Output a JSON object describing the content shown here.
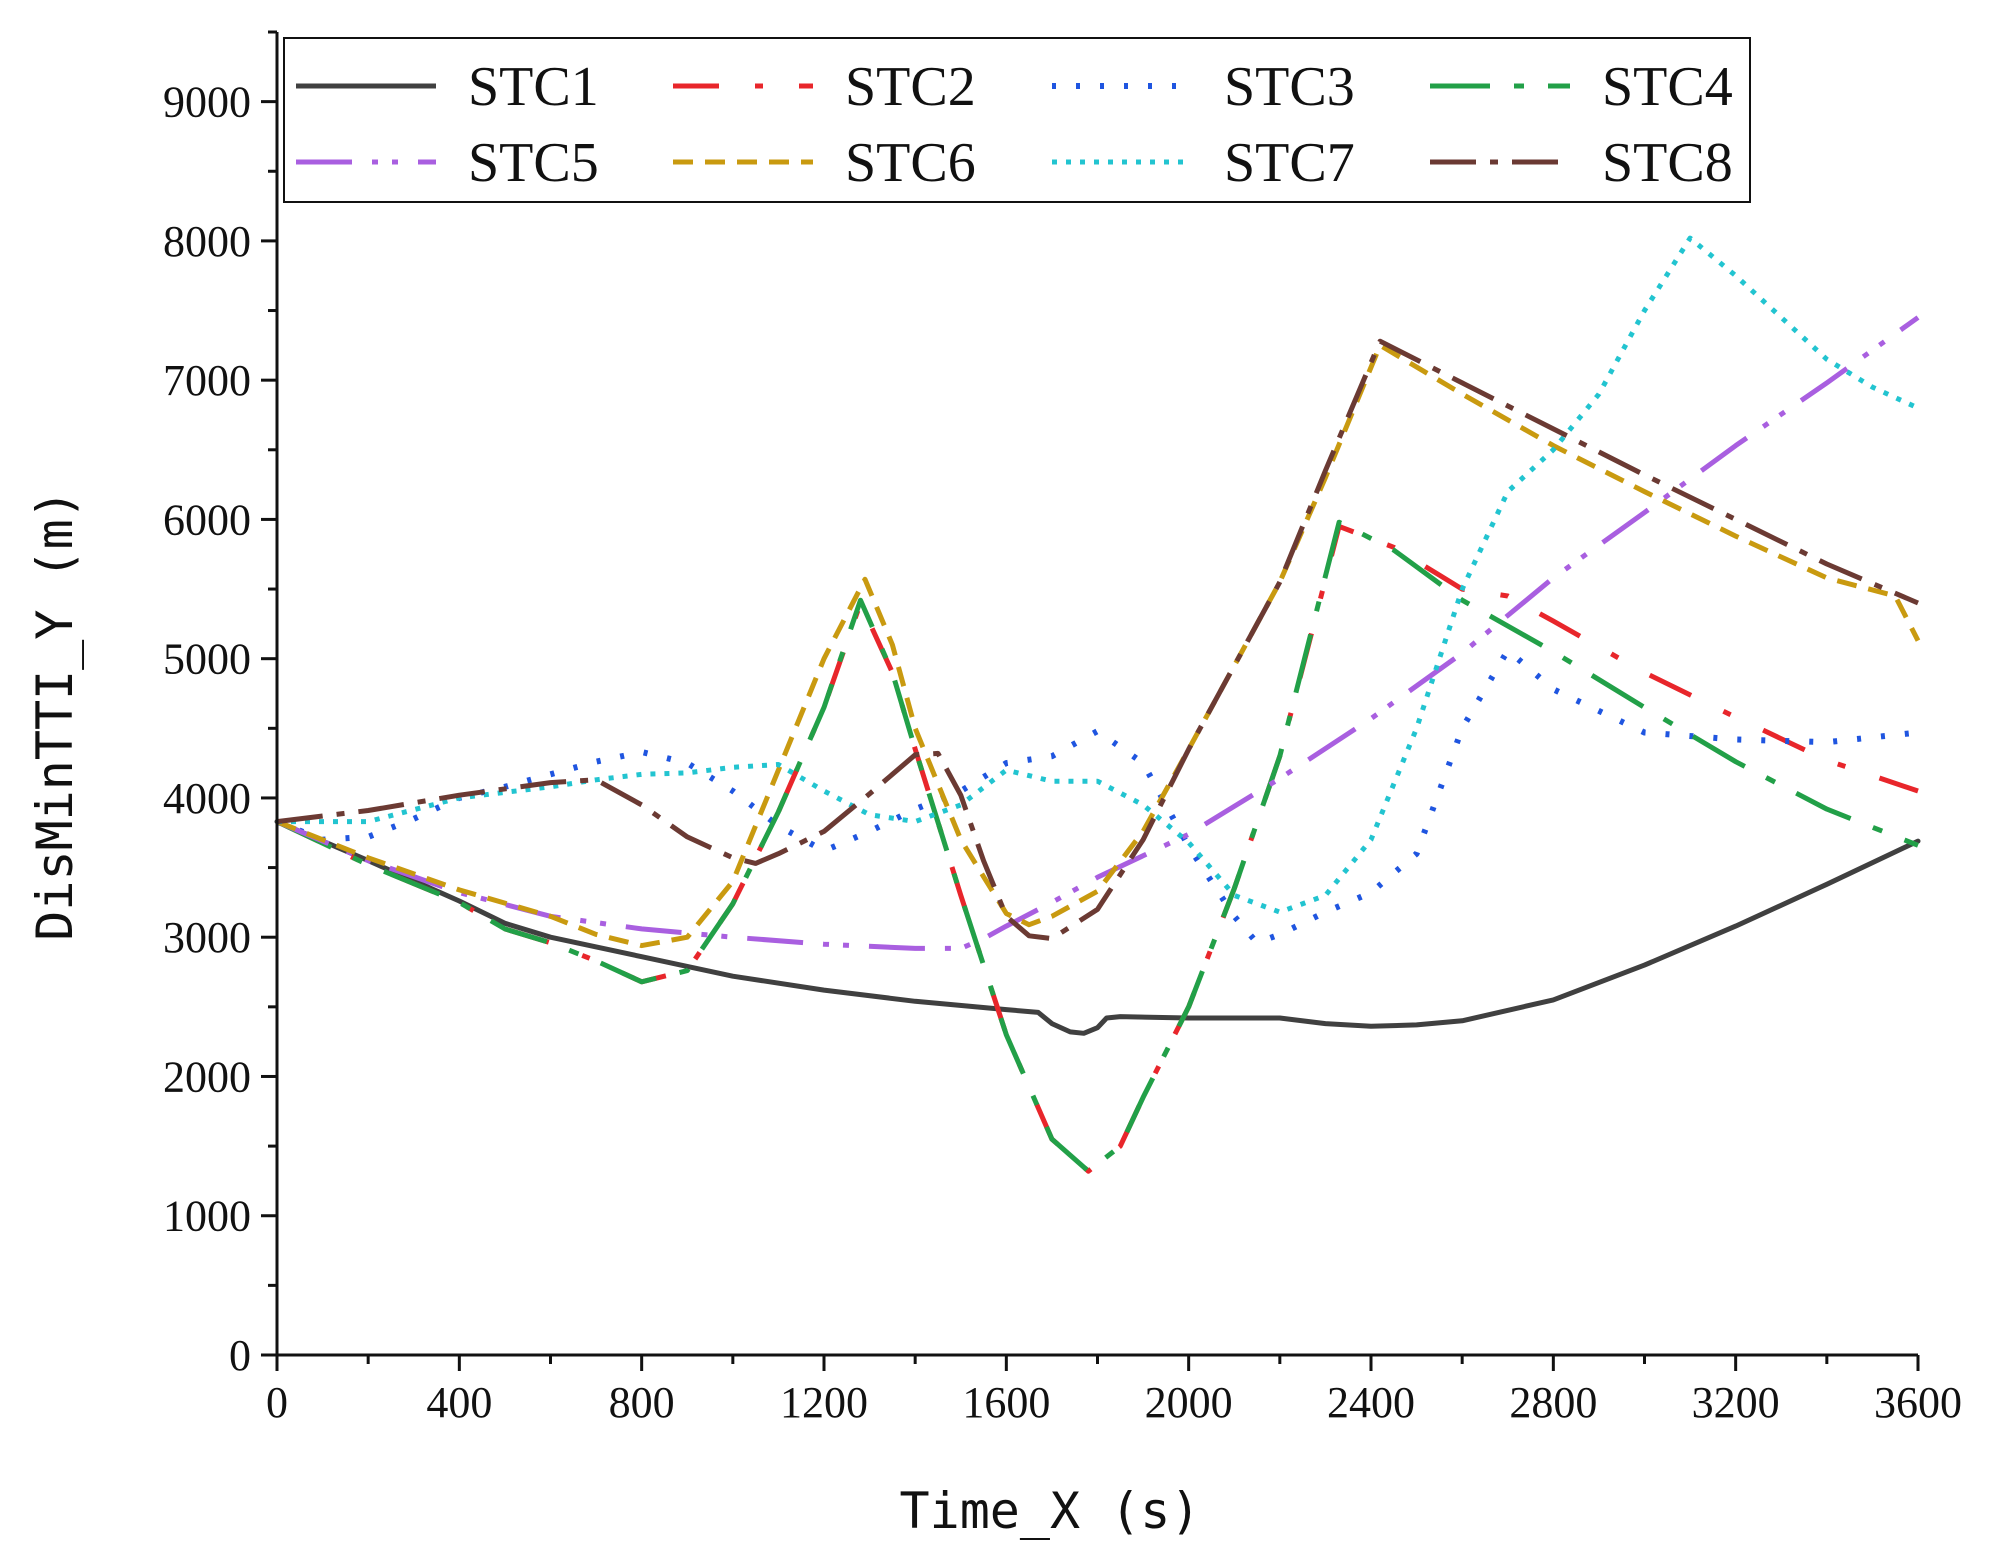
{
  "chart_data": {
    "type": "line",
    "title": "",
    "xlabel": "Time_X (s)",
    "ylabel": "DisMinTTI_Y (m)",
    "xlim": [
      0,
      3600
    ],
    "ylim": [
      0,
      9500
    ],
    "xticks": [
      0,
      400,
      800,
      1200,
      1600,
      2000,
      2400,
      2800,
      3200,
      3600
    ],
    "yticks": [
      0,
      1000,
      2000,
      3000,
      4000,
      5000,
      6000,
      7000,
      8000,
      9000
    ],
    "grid": false,
    "legend_position": "top",
    "series": [
      {
        "name": "STC1",
        "color": "#404040",
        "dash": "",
        "width": 5,
        "x": [
          0,
          200,
          400,
          500,
          600,
          800,
          1000,
          1200,
          1400,
          1600,
          1670,
          1700,
          1740,
          1770,
          1800,
          1820,
          1850,
          2000,
          2200,
          2300,
          2400,
          2500,
          2600,
          2800,
          3000,
          3200,
          3400,
          3600
        ],
        "y": [
          3830,
          3550,
          3260,
          3100,
          3000,
          2860,
          2720,
          2620,
          2540,
          2480,
          2460,
          2380,
          2320,
          2310,
          2350,
          2420,
          2430,
          2420,
          2420,
          2380,
          2360,
          2370,
          2400,
          2550,
          2800,
          3080,
          3380,
          3690
        ]
      },
      {
        "name": "STC2",
        "color": "#e8262b",
        "dash": "46,36,8,36",
        "width": 5,
        "x": [
          0,
          200,
          400,
          500,
          600,
          700,
          800,
          900,
          1000,
          1100,
          1200,
          1280,
          1350,
          1400,
          1500,
          1600,
          1700,
          1780,
          1850,
          1900,
          2000,
          2100,
          2200,
          2330,
          2450,
          2550,
          2600,
          2700,
          2800,
          3000,
          3200,
          3400,
          3600
        ],
        "y": [
          3830,
          3520,
          3250,
          3060,
          2960,
          2830,
          2680,
          2760,
          3240,
          3900,
          4650,
          5400,
          4900,
          4350,
          3300,
          2300,
          1550,
          1320,
          1500,
          1850,
          2500,
          3350,
          4300,
          5950,
          5800,
          5600,
          5500,
          5450,
          5270,
          4900,
          4580,
          4270,
          4050
        ]
      },
      {
        "name": "STC3",
        "color": "#1f55e0",
        "dash": "4,20",
        "width": 6,
        "x": [
          0,
          100,
          200,
          300,
          400,
          500,
          600,
          700,
          800,
          900,
          1000,
          1100,
          1200,
          1300,
          1400,
          1500,
          1600,
          1700,
          1800,
          1900,
          2000,
          2100,
          2150,
          2200,
          2300,
          2400,
          2500,
          2600,
          2700,
          2800,
          3000,
          3200,
          3400,
          3600
        ],
        "y": [
          3830,
          3700,
          3720,
          3850,
          4000,
          4080,
          4170,
          4260,
          4330,
          4250,
          4050,
          3800,
          3620,
          3760,
          3920,
          4050,
          4250,
          4300,
          4480,
          4250,
          3650,
          3150,
          2960,
          3020,
          3180,
          3320,
          3600,
          4500,
          5060,
          4780,
          4470,
          4420,
          4400,
          4470
        ]
      },
      {
        "name": "STC4",
        "color": "#22a048",
        "dash": "60,24,10,24",
        "width": 5,
        "x": [
          0,
          200,
          400,
          500,
          600,
          700,
          800,
          900,
          1000,
          1100,
          1200,
          1280,
          1350,
          1400,
          1500,
          1600,
          1700,
          1780,
          1850,
          1900,
          2000,
          2100,
          2200,
          2330,
          2450,
          2600,
          2800,
          3000,
          3200,
          3400,
          3600
        ],
        "y": [
          3830,
          3520,
          3250,
          3060,
          2960,
          2830,
          2680,
          2760,
          3240,
          3900,
          4650,
          5420,
          4900,
          4350,
          3300,
          2300,
          1550,
          1320,
          1500,
          1850,
          2500,
          3350,
          4300,
          5980,
          5780,
          5420,
          5050,
          4650,
          4260,
          3920,
          3660
        ]
      },
      {
        "name": "STC5",
        "color": "#a95fe0",
        "dash": "56,20,6,14,6,20",
        "width": 5,
        "x": [
          0,
          200,
          400,
          600,
          800,
          1000,
          1200,
          1400,
          1500,
          1550,
          1600,
          1700,
          1800,
          2000,
          2200,
          2400,
          2600,
          2800,
          3000,
          3200,
          3400,
          3600
        ],
        "y": [
          3830,
          3550,
          3320,
          3150,
          3060,
          3000,
          2950,
          2920,
          2920,
          2990,
          3080,
          3250,
          3430,
          3740,
          4140,
          4570,
          5040,
          5580,
          6050,
          6530,
          6980,
          7450
        ]
      },
      {
        "name": "STC6",
        "color": "#c99a10",
        "dash": "20,12",
        "width": 5,
        "x": [
          0,
          200,
          400,
          600,
          700,
          800,
          900,
          1000,
          1100,
          1200,
          1290,
          1350,
          1400,
          1500,
          1600,
          1650,
          1700,
          1800,
          1900,
          2000,
          2100,
          2200,
          2300,
          2420,
          2600,
          2800,
          3000,
          3200,
          3400,
          3550,
          3600
        ],
        "y": [
          3830,
          3570,
          3340,
          3150,
          3020,
          2940,
          3000,
          3400,
          4200,
          5000,
          5570,
          5100,
          4500,
          3700,
          3170,
          3090,
          3150,
          3330,
          3760,
          4350,
          4950,
          5550,
          6300,
          7250,
          6900,
          6530,
          6200,
          5880,
          5580,
          5450,
          5130
        ]
      },
      {
        "name": "STC7",
        "color": "#22c4d0",
        "dash": "5,9",
        "width": 5,
        "x": [
          0,
          200,
          400,
          600,
          700,
          800,
          900,
          1000,
          1100,
          1200,
          1300,
          1400,
          1500,
          1600,
          1700,
          1800,
          1900,
          2000,
          2100,
          2200,
          2300,
          2400,
          2500,
          2600,
          2700,
          2800,
          2900,
          3000,
          3100,
          3200,
          3300,
          3400,
          3500,
          3600
        ],
        "y": [
          3830,
          3830,
          4000,
          4080,
          4130,
          4170,
          4180,
          4220,
          4240,
          4050,
          3880,
          3830,
          3950,
          4200,
          4120,
          4120,
          3950,
          3680,
          3300,
          3180,
          3300,
          3700,
          4500,
          5500,
          6200,
          6500,
          6900,
          7500,
          8020,
          7750,
          7450,
          7150,
          6950,
          6800
        ]
      },
      {
        "name": "STC8",
        "color": "#6b3a33",
        "dash": "46,14,8,14",
        "width": 5,
        "x": [
          0,
          200,
          400,
          600,
          700,
          800,
          900,
          1000,
          1050,
          1100,
          1200,
          1300,
          1400,
          1450,
          1500,
          1550,
          1600,
          1650,
          1700,
          1800,
          1900,
          2000,
          2100,
          2200,
          2300,
          2420,
          2600,
          2800,
          3000,
          3200,
          3400,
          3600
        ],
        "y": [
          3830,
          3910,
          4020,
          4110,
          4130,
          3950,
          3720,
          3570,
          3530,
          3600,
          3760,
          4030,
          4310,
          4320,
          4020,
          3550,
          3150,
          3010,
          2990,
          3200,
          3700,
          4350,
          4950,
          5550,
          6350,
          7280,
          6980,
          6650,
          6320,
          6000,
          5680,
          5400
        ]
      }
    ]
  }
}
